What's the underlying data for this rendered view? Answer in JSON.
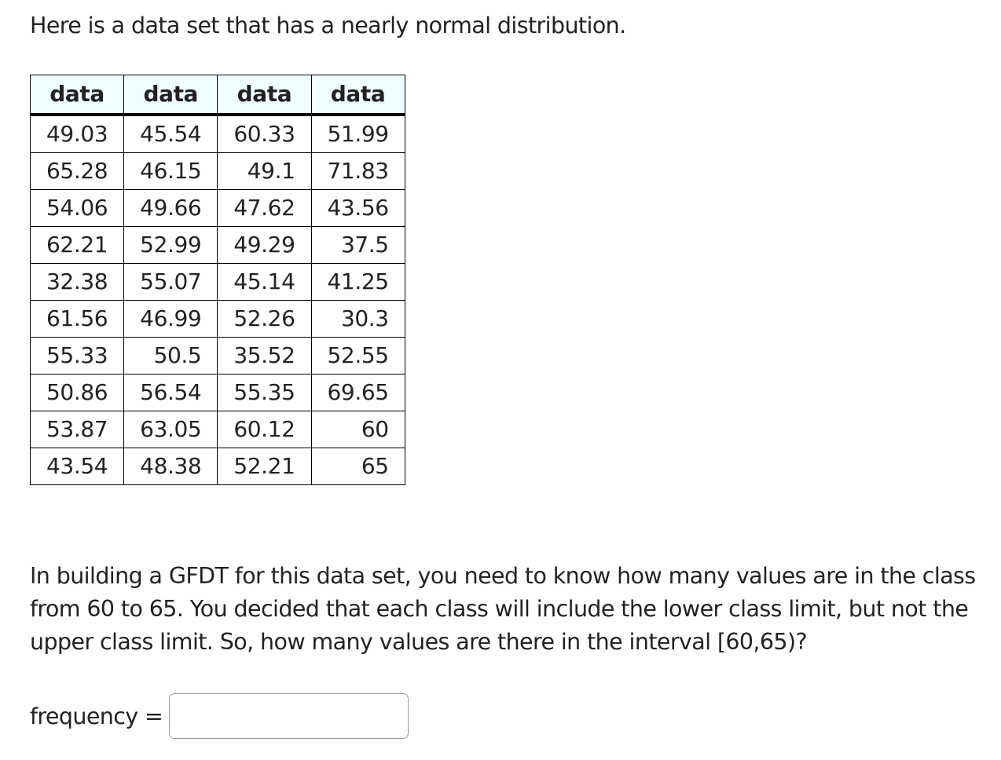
{
  "intro": "Here is a data set that has a nearly normal distribution.",
  "table": {
    "headers": [
      "data",
      "data",
      "data",
      "data"
    ],
    "rows": [
      [
        "49.03",
        "45.54",
        "60.33",
        "51.99"
      ],
      [
        "65.28",
        "46.15",
        "49.1",
        "71.83"
      ],
      [
        "54.06",
        "49.66",
        "47.62",
        "43.56"
      ],
      [
        "62.21",
        "52.99",
        "49.29",
        "37.5"
      ],
      [
        "32.38",
        "55.07",
        "45.14",
        "41.25"
      ],
      [
        "61.56",
        "46.99",
        "52.26",
        "30.3"
      ],
      [
        "55.33",
        "50.5",
        "35.52",
        "52.55"
      ],
      [
        "50.86",
        "56.54",
        "55.35",
        "69.65"
      ],
      [
        "53.87",
        "63.05",
        "60.12",
        "60"
      ],
      [
        "43.54",
        "48.38",
        "52.21",
        "65"
      ]
    ]
  },
  "question": "In building a GFDT for this data set, you need to know how many values are in the class from 60 to 65. You decided that each class will include the lower class limit, but not the upper class limit. So, how many values are there in the interval [60,65)?",
  "answer": {
    "label": "frequency =",
    "value": ""
  }
}
